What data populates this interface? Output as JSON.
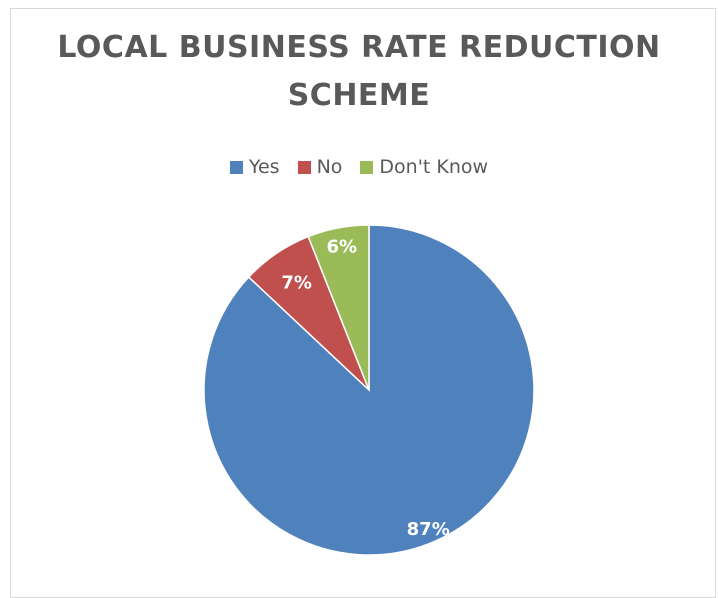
{
  "chart_data": {
    "type": "pie",
    "title": "LOCAL BUSINESS RATE REDUCTION SCHEME",
    "legend_position": "top",
    "slices": [
      {
        "name": "Yes",
        "value": 87,
        "label": "87%",
        "color": "#4f81bd"
      },
      {
        "name": "No",
        "value": 7,
        "label": "7%",
        "color": "#c0504d"
      },
      {
        "name": "Don't Know",
        "value": 6,
        "label": "6%",
        "color": "#9bbb59"
      }
    ]
  }
}
